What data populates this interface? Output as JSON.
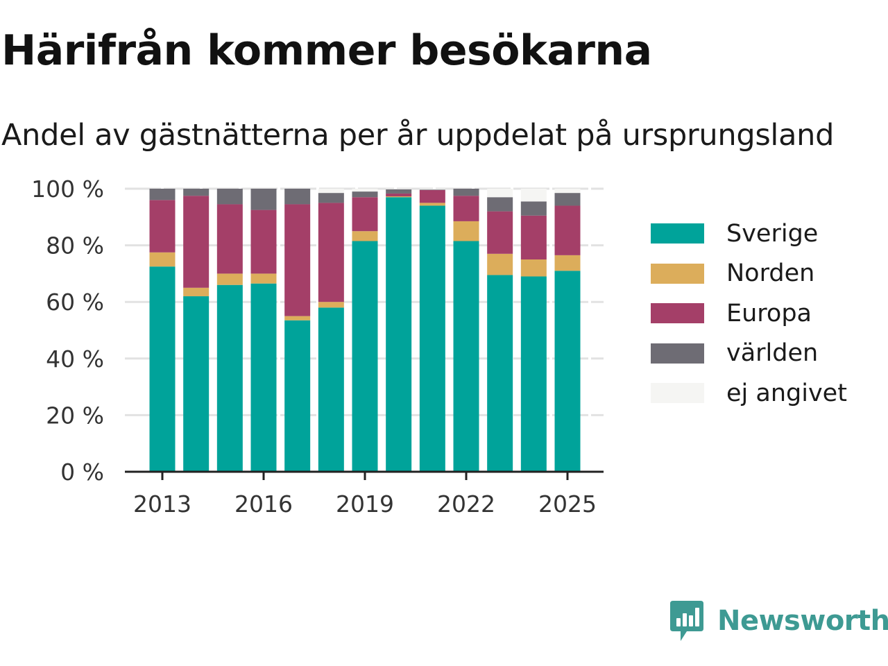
{
  "header": {
    "title": "Härifrån kommer besökarna",
    "subtitle": "Andel av gästnätterna per år uppdelat på ursprungsland"
  },
  "brand": {
    "name": "Newsworthy",
    "icon": "newsworthy-logo-icon",
    "color": "#3e9a93"
  },
  "chart_data": {
    "type": "bar",
    "stacked": true,
    "title": "Härifrån kommer besökarna",
    "subtitle": "Andel av gästnätterna per år uppdelat på ursprungsland",
    "x": [
      2013,
      2014,
      2015,
      2016,
      2017,
      2018,
      2019,
      2020,
      2021,
      2022,
      2023,
      2024,
      2025
    ],
    "x_ticks": [
      "2013",
      "2016",
      "2019",
      "2022",
      "2025"
    ],
    "y_ticks": [
      "0 %",
      "20 %",
      "40 %",
      "60 %",
      "80 %",
      "100 %"
    ],
    "ylim": [
      0,
      100
    ],
    "grid": true,
    "legend_position": "right",
    "series": [
      {
        "name": "Sverige",
        "color": "#00a39a",
        "values": [
          72.5,
          62,
          66,
          66.5,
          53.5,
          58,
          81.5,
          97,
          94,
          81.5,
          69.5,
          69,
          71
        ]
      },
      {
        "name": "Norden",
        "color": "#dcad5b",
        "values": [
          5,
          3,
          4,
          3.5,
          1.5,
          2,
          3.5,
          0.3,
          1,
          7,
          7.5,
          6,
          5.5
        ]
      },
      {
        "name": "Europa",
        "color": "#a43f68",
        "values": [
          18.5,
          32.5,
          24.5,
          22.5,
          39.5,
          35,
          12,
          1,
          4.5,
          9,
          15,
          15.5,
          17.5
        ]
      },
      {
        "name": "världen",
        "color": "#6e6c74",
        "values": [
          4,
          2.5,
          5.5,
          7.5,
          5.5,
          3.5,
          2,
          1.5,
          0.2,
          2.5,
          5,
          5,
          4.5
        ]
      },
      {
        "name": "ej angivet",
        "color": "#f5f5f3",
        "values": [
          0,
          0,
          0,
          0,
          0,
          1.5,
          1,
          0.2,
          0.3,
          0,
          3,
          4.5,
          1.5
        ]
      }
    ]
  }
}
